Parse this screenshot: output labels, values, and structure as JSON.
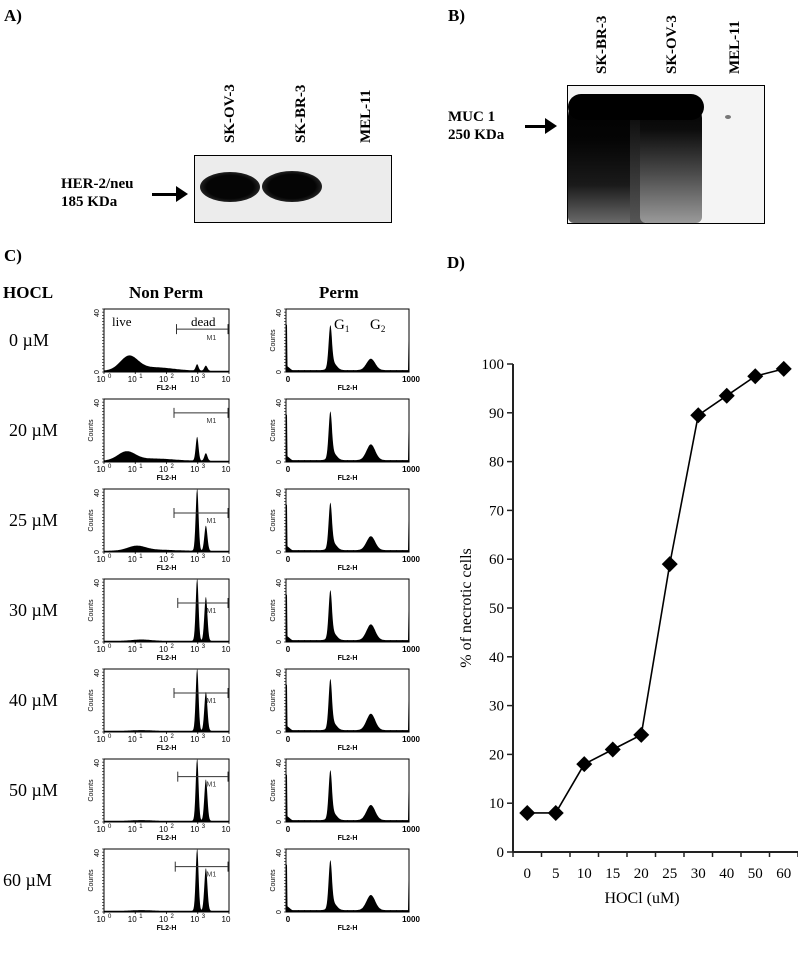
{
  "panels": {
    "A": {
      "label": "A)",
      "lanes": [
        "SK-OV-3",
        "SK-BR-3",
        "MEL-11"
      ],
      "band_caption_line1": "HER-2/neu",
      "band_caption_line2": "185 KDa"
    },
    "B": {
      "label": "B)",
      "lanes": [
        "SK-BR-3",
        "SK-OV-3",
        "MEL-11"
      ],
      "band_caption_line1": "MUC 1",
      "band_caption_line2": "250 KDa"
    },
    "C": {
      "label": "C)",
      "row_header": "HOCL",
      "col_nonperm": "Non Perm",
      "col_perm": "Perm",
      "annotations": {
        "live": "live",
        "dead": "dead",
        "g1": "G",
        "g1_sub": "1",
        "g2": "G",
        "g2_sub": "2",
        "marker": "M1"
      },
      "axis": {
        "ylabel": "Counts",
        "xlabel": "FL2-H",
        "y_ticks": [
          "0",
          "40"
        ],
        "nonperm_x_ticks": [
          "10",
          "10",
          "10",
          "10",
          "10"
        ],
        "nonperm_x_exps": [
          "0",
          "1",
          "2",
          "3",
          "4"
        ],
        "perm_x_ticks": [
          "0",
          "1000"
        ]
      },
      "rows": [
        {
          "dose": "0 µM",
          "nonperm": {
            "live": 22,
            "live_pos": 0.2,
            "p1": 10,
            "p2": 8,
            "gate_start": 0.58,
            "gate_y": 0.32
          },
          "perm": {
            "g1": 0.62,
            "g2": 0.18
          }
        },
        {
          "dose": "20 µM",
          "nonperm": {
            "live": 14,
            "live_pos": 0.18,
            "p1": 38,
            "p2": 12,
            "gate_start": 0.56,
            "gate_y": 0.22
          },
          "perm": {
            "g1": 0.68,
            "g2": 0.25
          }
        },
        {
          "dose": "25 µM",
          "nonperm": {
            "live": 7,
            "live_pos": 0.26,
            "p1": 100,
            "p2": 40,
            "gate_start": 0.56,
            "gate_y": 0.38
          },
          "perm": {
            "g1": 0.66,
            "g2": 0.22
          }
        },
        {
          "dose": "30 µM",
          "nonperm": {
            "live": 2,
            "live_pos": 0.3,
            "p1": 100,
            "p2": 70,
            "gate_start": 0.59,
            "gate_y": 0.38
          },
          "perm": {
            "g1": 0.7,
            "g2": 0.25
          }
        },
        {
          "dose": "40 µM",
          "nonperm": {
            "live": 1,
            "live_pos": 0.3,
            "p1": 100,
            "p2": 62,
            "gate_start": 0.56,
            "gate_y": 0.38
          },
          "perm": {
            "g1": 0.72,
            "g2": 0.26
          }
        },
        {
          "dose": "50 µM",
          "nonperm": {
            "live": 1,
            "live_pos": 0.3,
            "p1": 100,
            "p2": 66,
            "gate_start": 0.59,
            "gate_y": 0.28
          },
          "perm": {
            "g1": 0.7,
            "g2": 0.24
          }
        },
        {
          "dose": "60 µM",
          "nonperm": {
            "live": 1,
            "live_pos": 0.3,
            "p1": 100,
            "p2": 68,
            "gate_start": 0.57,
            "gate_y": 0.28
          },
          "perm": {
            "g1": 0.7,
            "g2": 0.24
          }
        }
      ]
    },
    "D": {
      "label": "D)"
    }
  },
  "chart_data": {
    "type": "line",
    "title": "",
    "xlabel": "HOCl (uM)",
    "ylabel": "% of necrotic cells",
    "categories": [
      "0",
      "5",
      "10",
      "15",
      "20",
      "25",
      "30",
      "40",
      "50",
      "60"
    ],
    "series": [
      {
        "name": "% of necrotic cells",
        "marker": "diamond",
        "values": [
          8,
          8,
          18,
          21,
          24,
          59,
          89.5,
          93.5,
          97.5,
          99
        ]
      }
    ],
    "ylim": [
      0,
      100
    ],
    "y_ticks": [
      "0",
      "10",
      "20",
      "30",
      "40",
      "50",
      "60",
      "70",
      "80",
      "90",
      "100"
    ],
    "grid": false,
    "legend": null
  }
}
